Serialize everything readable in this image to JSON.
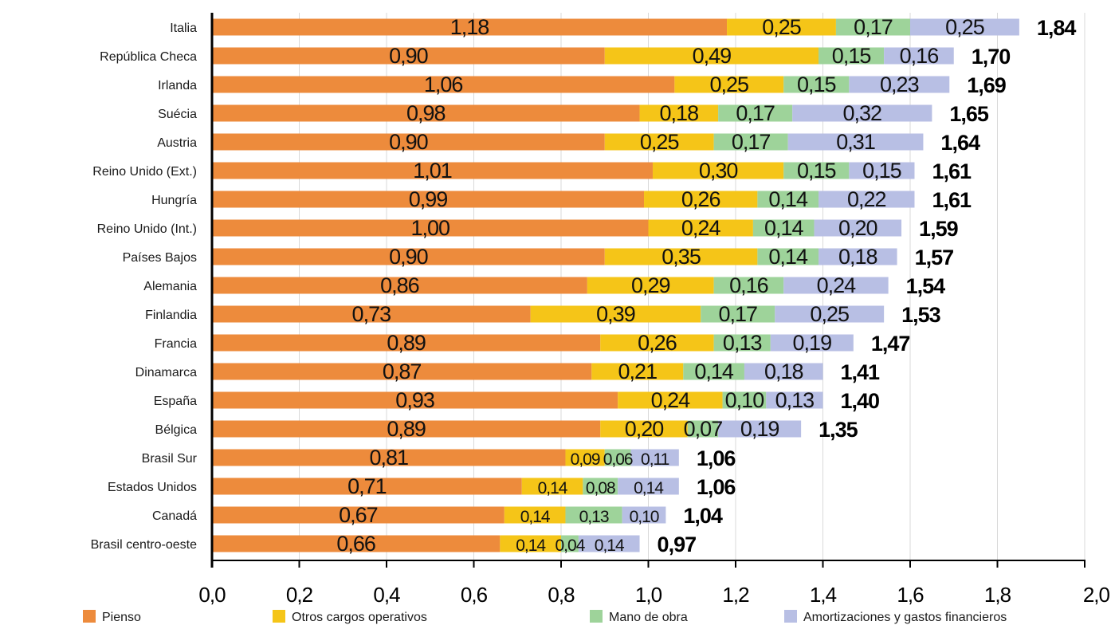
{
  "chart_data": {
    "type": "bar",
    "orientation": "horizontal",
    "stacked": true,
    "title": "",
    "xlabel": "",
    "ylabel": "",
    "xlim": [
      0,
      2.0
    ],
    "x_ticks": [
      "0,0",
      "0,2",
      "0,4",
      "0,6",
      "0,8",
      "1,0",
      "1,2",
      "1,4",
      "1,6",
      "1,8",
      "2,0"
    ],
    "x_tick_values": [
      0,
      0.2,
      0.4,
      0.6,
      0.8,
      1.0,
      1.2,
      1.4,
      1.6,
      1.8,
      2.0
    ],
    "grid": "vertical",
    "legend_position": "bottom",
    "categories": [
      "Italia",
      "República Checa",
      "Irlanda",
      "Suécia",
      "Austria",
      "Reino Unido (Ext.)",
      "Hungría",
      "Reino Unido (Int.)",
      "Países Bajos",
      "Alemania",
      "Finlandia",
      "Francia",
      "Dinamarca",
      "España",
      "Bélgica",
      "Brasil Sur",
      "Estados Unidos",
      "Canadá",
      "Brasil centro-oeste"
    ],
    "series": [
      {
        "name": "Pienso",
        "color": "#ED8B3C",
        "values": [
          1.18,
          0.9,
          1.06,
          0.98,
          0.9,
          1.01,
          0.99,
          1.0,
          0.9,
          0.86,
          0.73,
          0.89,
          0.87,
          0.93,
          0.89,
          0.81,
          0.71,
          0.67,
          0.66
        ],
        "labels": [
          "1,18",
          "0,90",
          "1,06",
          "0,98",
          "0,90",
          "1,01",
          "0,99",
          "1,00",
          "0,90",
          "0,86",
          "0,73",
          "0,89",
          "0,87",
          "0,93",
          "0,89",
          "0,81",
          "0,71",
          "0,67",
          "0,66"
        ]
      },
      {
        "name": "Otros cargos operativos",
        "color": "#F5C518",
        "values": [
          0.25,
          0.49,
          0.25,
          0.18,
          0.25,
          0.3,
          0.26,
          0.24,
          0.35,
          0.29,
          0.39,
          0.26,
          0.21,
          0.24,
          0.2,
          0.09,
          0.14,
          0.14,
          0.14
        ],
        "labels": [
          "0,25",
          "0,49",
          "0,25",
          "0,18",
          "0,25",
          "0,30",
          "0,26",
          "0,24",
          "0,35",
          "0,29",
          "0,39",
          "0,26",
          "0,21",
          "0,24",
          "0,20",
          "0,09",
          "0,14",
          "0,14",
          "0,14"
        ]
      },
      {
        "name": "Mano de obra",
        "color": "#9ED39A",
        "values": [
          0.17,
          0.15,
          0.15,
          0.17,
          0.17,
          0.15,
          0.14,
          0.14,
          0.14,
          0.16,
          0.17,
          0.13,
          0.14,
          0.1,
          0.07,
          0.06,
          0.08,
          0.13,
          0.04
        ],
        "labels": [
          "0,17",
          "0,15",
          "0,15",
          "0,17",
          "0,17",
          "0,15",
          "0,14",
          "0,14",
          "0,14",
          "0,16",
          "0,17",
          "0,13",
          "0,14",
          "0,10",
          "0,07",
          "0,06",
          "0,08",
          "0,13",
          "0,04"
        ]
      },
      {
        "name": "Amortizaciones y gastos financieros",
        "color": "#B8BFE4",
        "values": [
          0.25,
          0.16,
          0.23,
          0.32,
          0.31,
          0.15,
          0.22,
          0.2,
          0.18,
          0.24,
          0.25,
          0.19,
          0.18,
          0.13,
          0.19,
          0.11,
          0.14,
          0.1,
          0.14
        ],
        "labels": [
          "0,25",
          "0,16",
          "0,23",
          "0,32",
          "0,31",
          "0,15",
          "0,22",
          "0,20",
          "0,18",
          "0,24",
          "0,25",
          "0,19",
          "0,18",
          "0,13",
          "0,19",
          "0,11",
          "0,14",
          "0,10",
          "0,14"
        ]
      }
    ],
    "totals": [
      1.84,
      1.7,
      1.69,
      1.65,
      1.64,
      1.61,
      1.61,
      1.59,
      1.57,
      1.54,
      1.53,
      1.47,
      1.41,
      1.4,
      1.35,
      1.06,
      1.06,
      1.04,
      0.97
    ],
    "total_labels": [
      "1,84",
      "1,70",
      "1,69",
      "1,65",
      "1,64",
      "1,61",
      "1,61",
      "1,59",
      "1,57",
      "1,54",
      "1,53",
      "1,47",
      "1,41",
      "1,40",
      "1,35",
      "1,06",
      "1,06",
      "1,04",
      "0,97"
    ]
  }
}
